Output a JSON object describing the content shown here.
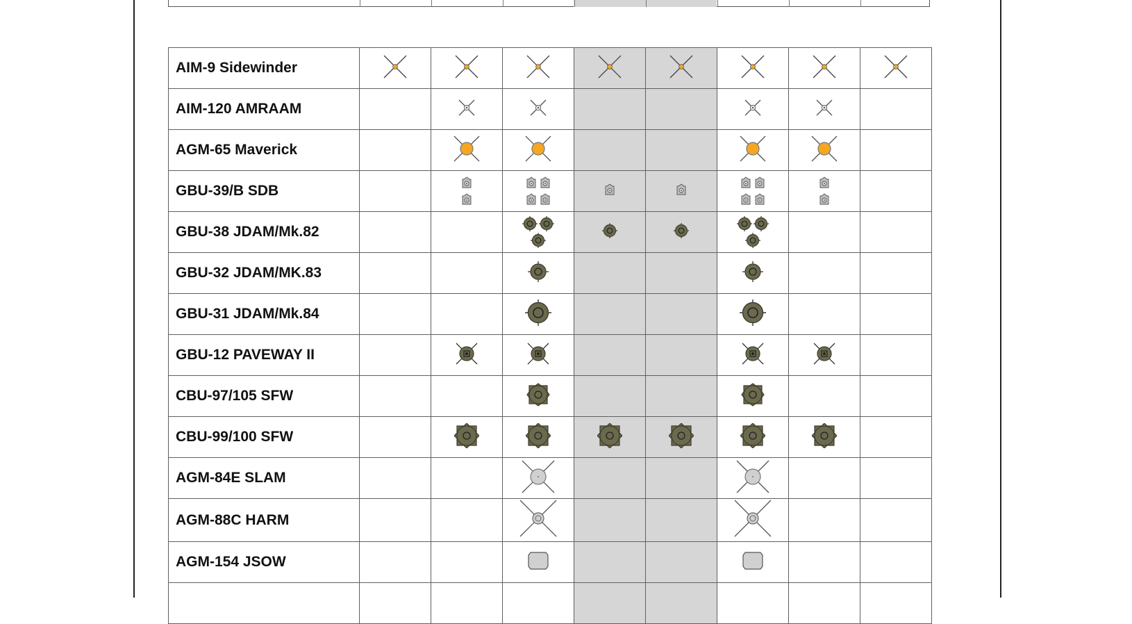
{
  "table": {
    "column_count": 8,
    "shaded_columns": [
      3,
      4
    ],
    "rows": [
      {
        "label": "AIM-9 Sidewinder",
        "icon": "sidewinder-icon",
        "counts": [
          1,
          1,
          1,
          1,
          1,
          1,
          1,
          1
        ]
      },
      {
        "label": "AIM-120 AMRAAM",
        "icon": "amraam-icon",
        "counts": [
          0,
          1,
          1,
          0,
          0,
          1,
          1,
          0
        ]
      },
      {
        "label": "AGM-65 Maverick",
        "icon": "maverick-icon",
        "counts": [
          0,
          1,
          1,
          0,
          0,
          1,
          1,
          0
        ]
      },
      {
        "label": "GBU-39/B SDB",
        "icon": "sdb-icon",
        "counts": [
          0,
          2,
          4,
          1,
          1,
          4,
          2,
          0
        ]
      },
      {
        "label": "GBU-38 JDAM/Mk.82",
        "icon": "jdam-mk82-icon",
        "counts": [
          0,
          0,
          3,
          1,
          1,
          3,
          0,
          0
        ]
      },
      {
        "label": "GBU-32 JDAM/MK.83",
        "icon": "jdam-mk83-icon",
        "counts": [
          0,
          0,
          1,
          0,
          0,
          1,
          0,
          0
        ]
      },
      {
        "label": "GBU-31 JDAM/Mk.84",
        "icon": "jdam-mk84-icon",
        "counts": [
          0,
          0,
          1,
          0,
          0,
          1,
          0,
          0
        ]
      },
      {
        "label": "GBU-12 PAVEWAY II",
        "icon": "paveway-icon",
        "counts": [
          0,
          1,
          1,
          0,
          0,
          1,
          1,
          0
        ]
      },
      {
        "label": "CBU-97/105 SFW",
        "icon": "sfw-icon",
        "counts": [
          0,
          0,
          1,
          0,
          0,
          1,
          0,
          0
        ]
      },
      {
        "label": "CBU-99/100 SFW",
        "icon": "cbu99-icon",
        "counts": [
          0,
          1,
          1,
          1,
          1,
          1,
          1,
          0
        ]
      },
      {
        "label": "AGM-84E SLAM",
        "icon": "slam-icon",
        "counts": [
          0,
          0,
          1,
          0,
          0,
          1,
          0,
          0
        ]
      },
      {
        "label": "AGM-88C HARM",
        "icon": "harm-icon",
        "counts": [
          0,
          0,
          1,
          0,
          0,
          1,
          0,
          0
        ]
      },
      {
        "label": "AGM-154 JSOW",
        "icon": "jsow-icon",
        "counts": [
          0,
          0,
          1,
          0,
          0,
          1,
          0,
          0
        ]
      },
      {
        "label": "",
        "icon": "",
        "counts": [
          0,
          0,
          0,
          0,
          0,
          0,
          0,
          0
        ]
      }
    ]
  },
  "colors": {
    "shade": "#d6d6d6",
    "grid_line": "#5f5f5f",
    "orange": "#f5a623",
    "olive": "#6b6a4e",
    "olive_dark": "#3f3e2c",
    "silver": "#d0d0d0"
  }
}
